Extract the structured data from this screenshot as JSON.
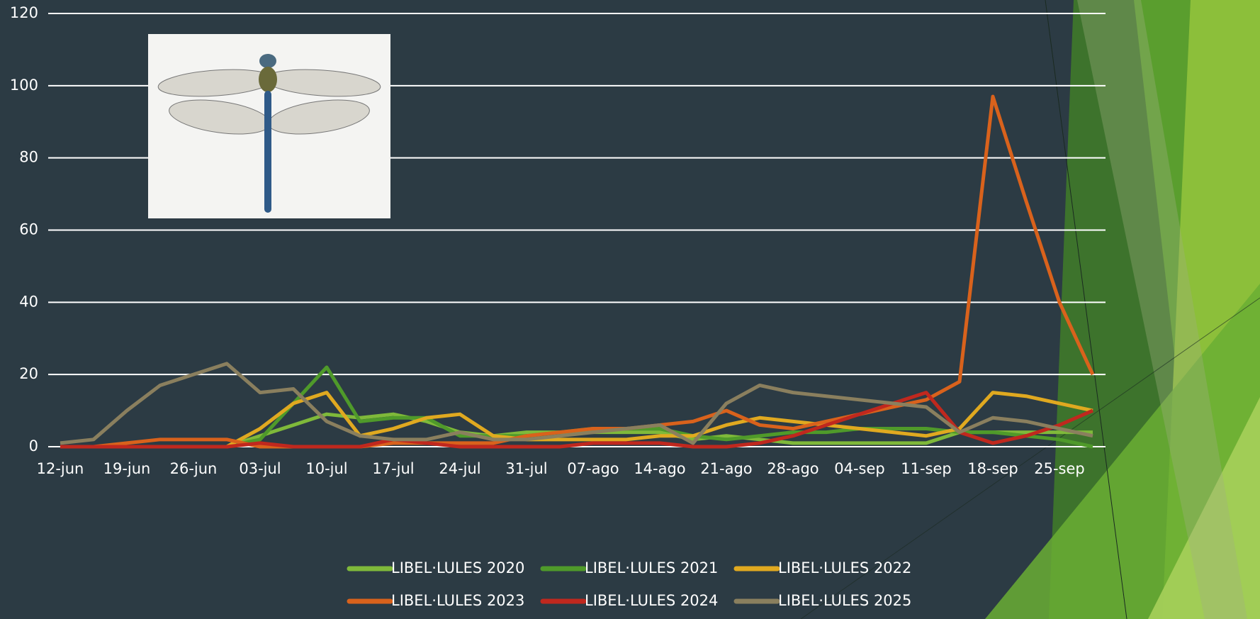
{
  "chart_data": {
    "type": "line",
    "categories": [
      "12-jun",
      null,
      "19-jun",
      null,
      "26-jun",
      null,
      "03-jul",
      null,
      "10-jul",
      null,
      "17-jul",
      null,
      "24-jul",
      null,
      "31-jul",
      null,
      "07-ago",
      null,
      "14-ago",
      null,
      "21-ago",
      null,
      "28-ago",
      null,
      "04-sep",
      null,
      "11-sep",
      null,
      "18-sep",
      null,
      "25-sep",
      null
    ],
    "series": [
      {
        "name": "LIBEL·LULES 2020",
        "color": "#7fb93a",
        "values": [
          0,
          0,
          0,
          0,
          0,
          0,
          3,
          6,
          9,
          8,
          9,
          7,
          4,
          3,
          4,
          4,
          4,
          4,
          4,
          2,
          3,
          2,
          1,
          1,
          1,
          1,
          1,
          4,
          4,
          4,
          4,
          4
        ]
      },
      {
        "name": "LIBEL·LULES 2021",
        "color": "#4f9a2a",
        "values": [
          0,
          0,
          0,
          0,
          0,
          0,
          2,
          12,
          22,
          7,
          8,
          8,
          3,
          3,
          3,
          4,
          5,
          5,
          5,
          3,
          2,
          3,
          4,
          4,
          5,
          5,
          5,
          4,
          4,
          3,
          2,
          0
        ]
      },
      {
        "name": "LIBEL·LULES 2022",
        "color": "#e0a920",
        "values": [
          0,
          0,
          0,
          0,
          0,
          0,
          5,
          12,
          15,
          3,
          5,
          8,
          9,
          3,
          2,
          2,
          2,
          2,
          3,
          3,
          6,
          8,
          7,
          6,
          5,
          4,
          3,
          5,
          15,
          14,
          12,
          10
        ]
      },
      {
        "name": "LIBEL·LULES 2023",
        "color": "#d9621c",
        "values": [
          0,
          0,
          1,
          2,
          2,
          2,
          0,
          0,
          0,
          0,
          1,
          1,
          1,
          1,
          3,
          4,
          5,
          5,
          6,
          7,
          10,
          6,
          5,
          7,
          9,
          11,
          13,
          18,
          97,
          68,
          40,
          20
        ]
      },
      {
        "name": "LIBEL·LULES 2024",
        "color": "#c0281e",
        "values": [
          0,
          0,
          0,
          0,
          0,
          0,
          1,
          0,
          0,
          0,
          2,
          1,
          0,
          0,
          0,
          0,
          1,
          1,
          1,
          0,
          0,
          1,
          3,
          6,
          9,
          12,
          15,
          4,
          1,
          3,
          6,
          10
        ]
      },
      {
        "name": "LIBEL·LULES 2025",
        "color": "#8a7f5e",
        "values": [
          1,
          2,
          10,
          17,
          20,
          23,
          15,
          16,
          7,
          3,
          2,
          2,
          4,
          2,
          2,
          3,
          4,
          5,
          6,
          1,
          12,
          17,
          15,
          14,
          13,
          12,
          11,
          4,
          8,
          7,
          5,
          3
        ]
      }
    ],
    "ylim": [
      0,
      120
    ],
    "yticks": [
      0,
      20,
      40,
      60,
      80,
      100,
      120
    ],
    "grid": true
  }
}
